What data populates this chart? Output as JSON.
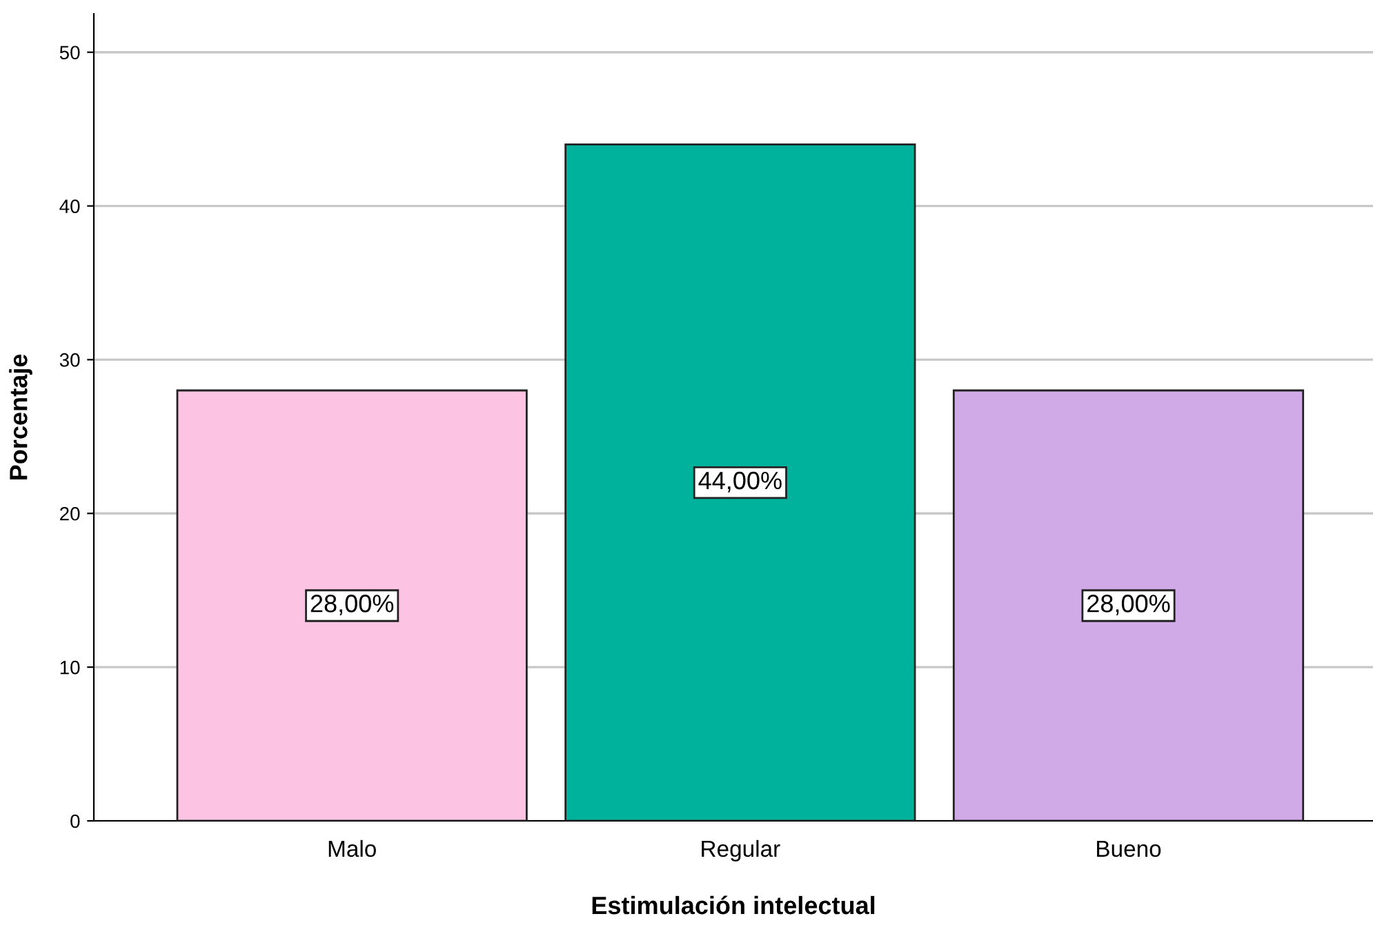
{
  "chart_data": {
    "type": "bar",
    "xlabel": "Estimulación intelectual",
    "ylabel": "Porcentaje",
    "categories": [
      "Malo",
      "Regular",
      "Bueno"
    ],
    "values": [
      28,
      44,
      28
    ],
    "colors": [
      "#fdc3e2",
      "#00b29c",
      "#d0aae6"
    ],
    "value_labels": [
      "28,00%",
      "44,00%",
      "28,00%"
    ],
    "ylim": [
      0,
      52.5
    ],
    "yticks": [
      0,
      10,
      20,
      30,
      40,
      50
    ],
    "grid": "y"
  }
}
